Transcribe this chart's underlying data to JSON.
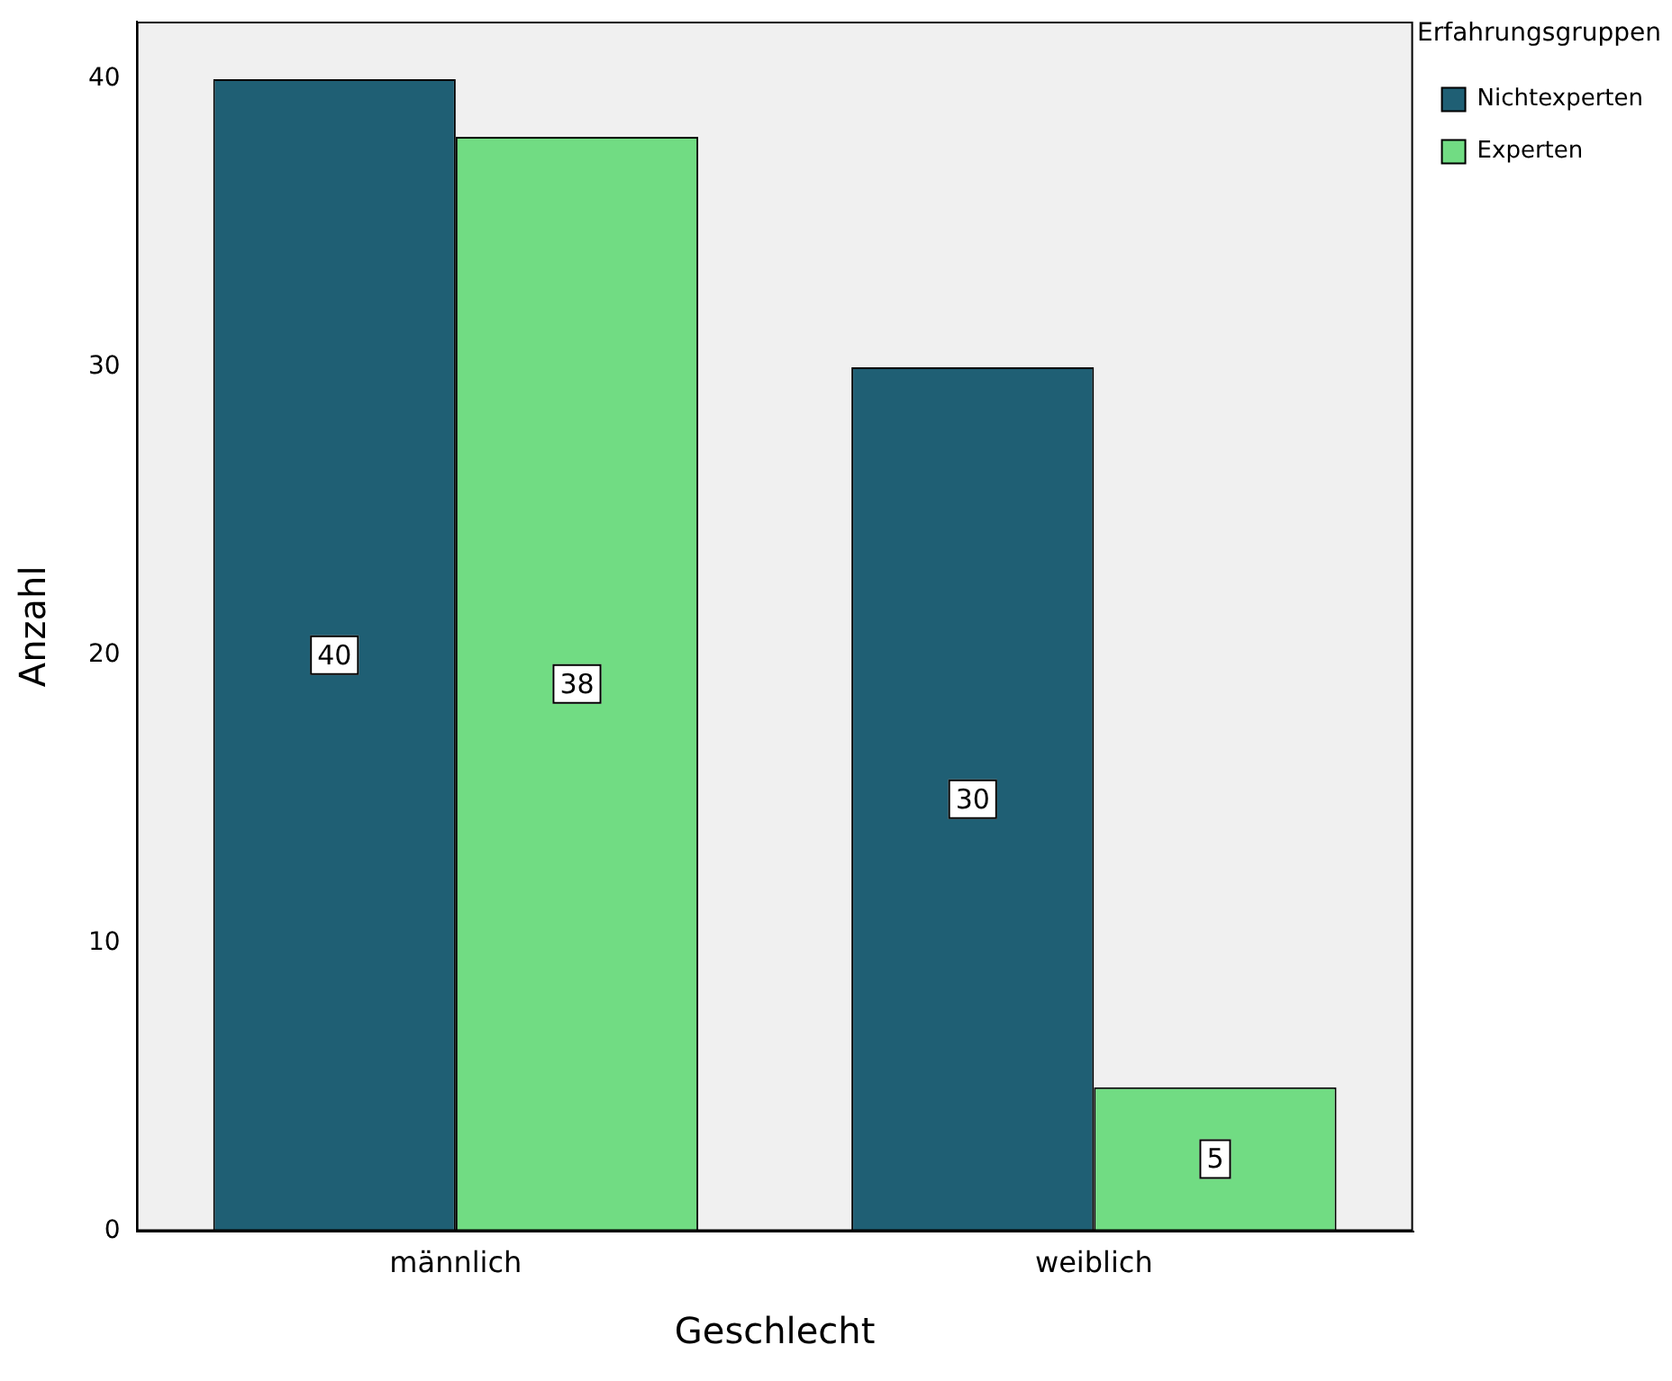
{
  "chart_data": {
    "type": "bar",
    "xlabel": "Geschlecht",
    "ylabel": "Anzahl",
    "legend_title": "Erfahrungsgruppen",
    "categories": [
      "männlich",
      "weiblich"
    ],
    "series": [
      {
        "name": "Nichtexperten",
        "color": "#1f5f74",
        "values": [
          40,
          30
        ]
      },
      {
        "name": "Experten",
        "color": "#71dc83",
        "values": [
          38,
          5
        ]
      }
    ],
    "ylim": [
      0,
      42
    ],
    "yticks": [
      0,
      10,
      20,
      30,
      40
    ],
    "grid": false,
    "legend": "top right",
    "data_labels": true
  }
}
